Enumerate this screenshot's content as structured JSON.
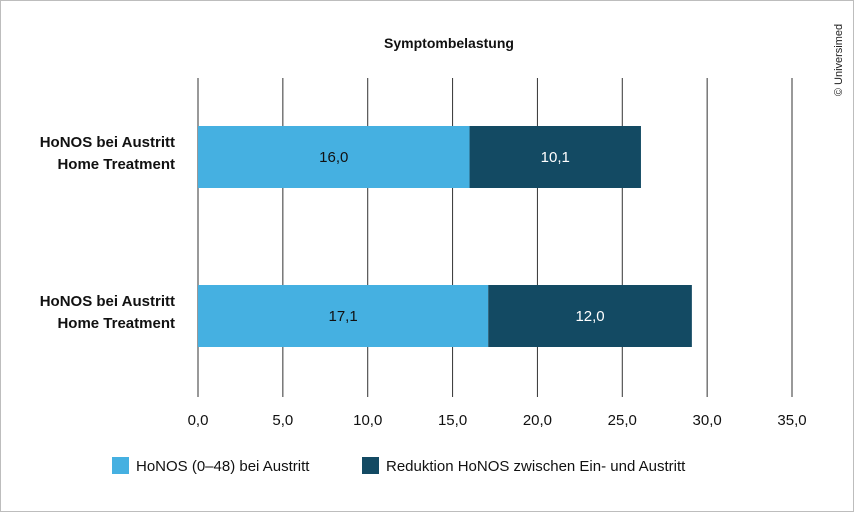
{
  "copyright": "© Universimed",
  "chart_data": {
    "type": "bar",
    "orientation": "horizontal",
    "stacked": true,
    "title": "Symptombelastung",
    "categories": [
      [
        "HoNOS bei Austritt",
        "Home Treatment"
      ],
      [
        "HoNOS bei Austritt",
        "Home Treatment"
      ]
    ],
    "series": [
      {
        "name": "HoNOS (0–48) bei Austritt",
        "color": "#45b0e1",
        "values": [
          16.0,
          17.1
        ],
        "labels": [
          "16,0",
          "17,1"
        ]
      },
      {
        "name": "Reduktion HoNOS zwischen Ein- und Austritt",
        "color": "#134a63",
        "values": [
          10.1,
          12.0
        ],
        "labels": [
          "10,1",
          "12,0"
        ]
      }
    ],
    "xlim": [
      0,
      35
    ],
    "xticks": [
      0,
      5,
      10,
      15,
      20,
      25,
      30,
      35
    ],
    "xtick_labels": [
      "0,0",
      "5,0",
      "10,0",
      "15,0",
      "20,0",
      "25,0",
      "30,0",
      "35,0"
    ],
    "grid": true,
    "legend": "bottom"
  }
}
